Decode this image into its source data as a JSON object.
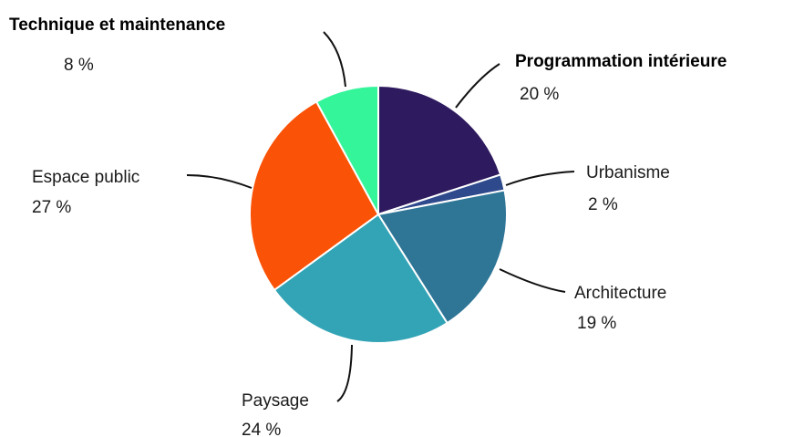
{
  "chart_data": {
    "type": "pie",
    "categories": [
      "Programmation intérieure",
      "Urbanisme",
      "Architecture",
      "Paysage",
      "Espace public",
      "Technique et maintenance"
    ],
    "values": [
      20,
      2,
      19,
      24,
      27,
      8
    ],
    "value_labels": [
      "20 %",
      "2 %",
      "19 %",
      "24 %",
      "27 %",
      "8 %"
    ],
    "colors": [
      "#2e1a5e",
      "#2f4a8c",
      "#2e7596",
      "#32a4b6",
      "#fa5206",
      "#35f59b"
    ]
  }
}
